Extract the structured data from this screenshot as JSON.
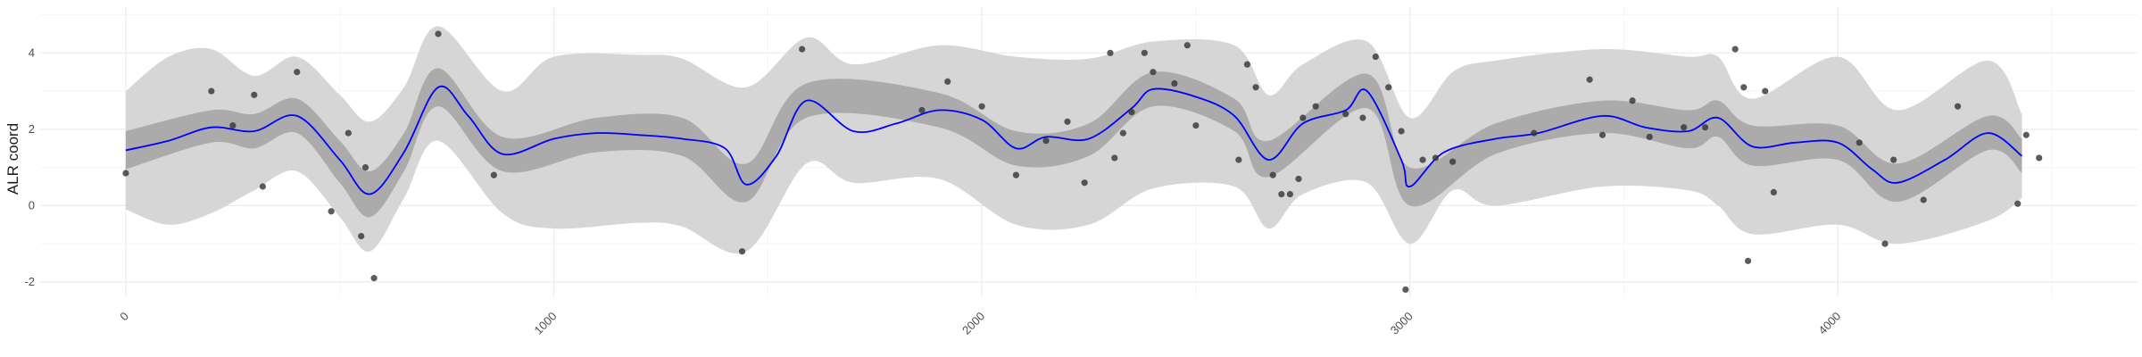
{
  "chart_data": {
    "type": "line",
    "title": "",
    "xlabel": "",
    "ylabel": "ALR coord",
    "xlim": [
      -200,
      4700
    ],
    "ylim": [
      -2.4,
      5.2
    ],
    "x_ticks": [
      0,
      1000,
      2000,
      3000,
      4000
    ],
    "y_ticks": [
      -2,
      0,
      2,
      4
    ],
    "grid": true,
    "legend": "none",
    "colors": {
      "mean_line": "#0000ff",
      "inner_band": "#ababab",
      "outer_band": "#d6d6d6",
      "points": "#333333",
      "grid_major": "#ebebeb",
      "grid_minor": "#f5f5f5"
    },
    "series": [
      {
        "values": [
          [
            0,
            1.45
          ],
          [
            100,
            1.7
          ],
          [
            200,
            2.05
          ],
          [
            300,
            1.95
          ],
          [
            400,
            2.35
          ],
          [
            500,
            1.2
          ],
          [
            570,
            0.3
          ],
          [
            650,
            1.4
          ],
          [
            730,
            3.1
          ],
          [
            800,
            2.35
          ],
          [
            880,
            1.35
          ],
          [
            1000,
            1.75
          ],
          [
            1100,
            1.9
          ],
          [
            1200,
            1.85
          ],
          [
            1300,
            1.75
          ],
          [
            1400,
            1.5
          ],
          [
            1450,
            0.55
          ],
          [
            1520,
            1.3
          ],
          [
            1590,
            2.75
          ],
          [
            1700,
            1.95
          ],
          [
            1800,
            2.15
          ],
          [
            1900,
            2.5
          ],
          [
            2000,
            2.25
          ],
          [
            2080,
            1.5
          ],
          [
            2150,
            1.8
          ],
          [
            2250,
            1.75
          ],
          [
            2350,
            2.55
          ],
          [
            2400,
            3.05
          ],
          [
            2500,
            2.85
          ],
          [
            2590,
            2.35
          ],
          [
            2670,
            1.2
          ],
          [
            2750,
            2.15
          ],
          [
            2850,
            2.5
          ],
          [
            2900,
            3.0
          ],
          [
            2980,
            1.2
          ],
          [
            3000,
            0.5
          ],
          [
            3080,
            1.4
          ],
          [
            3200,
            1.75
          ],
          [
            3300,
            1.9
          ],
          [
            3450,
            2.35
          ],
          [
            3550,
            2.05
          ],
          [
            3650,
            1.95
          ],
          [
            3720,
            2.3
          ],
          [
            3800,
            1.55
          ],
          [
            3900,
            1.65
          ],
          [
            4000,
            1.65
          ],
          [
            4080,
            0.95
          ],
          [
            4140,
            0.6
          ],
          [
            4250,
            1.2
          ],
          [
            4350,
            1.9
          ],
          [
            4430,
            1.3
          ]
        ],
        "inner_band": [
          [
            0,
            1.95,
            0.95
          ],
          [
            200,
            2.5,
            1.65
          ],
          [
            300,
            2.4,
            1.5
          ],
          [
            400,
            2.8,
            1.9
          ],
          [
            500,
            1.7,
            0.6
          ],
          [
            570,
            0.9,
            -0.3
          ],
          [
            650,
            1.9,
            0.9
          ],
          [
            730,
            3.6,
            2.6
          ],
          [
            880,
            1.8,
            0.9
          ],
          [
            1100,
            2.3,
            1.4
          ],
          [
            1300,
            2.3,
            1.3
          ],
          [
            1450,
            1.1,
            0.1
          ],
          [
            1590,
            3.2,
            2.3
          ],
          [
            1900,
            2.95,
            2.05
          ],
          [
            2080,
            1.95,
            1.05
          ],
          [
            2250,
            2.15,
            1.3
          ],
          [
            2400,
            3.5,
            2.6
          ],
          [
            2590,
            2.8,
            1.95
          ],
          [
            2670,
            1.7,
            0.75
          ],
          [
            2900,
            3.45,
            2.55
          ],
          [
            3000,
            1.0,
            0.0
          ],
          [
            3200,
            2.15,
            1.35
          ],
          [
            3450,
            2.75,
            1.9
          ],
          [
            3650,
            2.5,
            1.5
          ],
          [
            3720,
            2.75,
            1.8
          ],
          [
            3800,
            2.1,
            1.05
          ],
          [
            4000,
            2.1,
            1.2
          ],
          [
            4140,
            1.1,
            0.1
          ],
          [
            4350,
            2.35,
            1.45
          ],
          [
            4430,
            1.75,
            0.85
          ]
        ],
        "outer_band": [
          [
            0,
            3.0,
            -0.1
          ],
          [
            100,
            3.9,
            -0.5
          ],
          [
            200,
            4.1,
            -0.2
          ],
          [
            300,
            3.4,
            0.4
          ],
          [
            400,
            3.9,
            0.9
          ],
          [
            500,
            2.9,
            -0.3
          ],
          [
            570,
            2.2,
            -1.2
          ],
          [
            650,
            3.1,
            0.2
          ],
          [
            730,
            4.7,
            1.7
          ],
          [
            880,
            3.0,
            -0.2
          ],
          [
            1000,
            3.9,
            -0.6
          ],
          [
            1200,
            3.95,
            -0.45
          ],
          [
            1300,
            3.85,
            -0.55
          ],
          [
            1450,
            3.1,
            -1.2
          ],
          [
            1590,
            4.4,
            1.1
          ],
          [
            1700,
            3.7,
            0.6
          ],
          [
            1900,
            4.2,
            0.7
          ],
          [
            2080,
            3.9,
            -0.5
          ],
          [
            2250,
            3.85,
            -0.5
          ],
          [
            2400,
            4.3,
            0.45
          ],
          [
            2590,
            4.2,
            0.5
          ],
          [
            2670,
            2.9,
            -0.6
          ],
          [
            2750,
            3.7,
            0.3
          ],
          [
            2900,
            4.3,
            0.6
          ],
          [
            3000,
            2.3,
            -1.0
          ],
          [
            3100,
            3.5,
            0.4
          ],
          [
            3200,
            3.8,
            0.0
          ],
          [
            3450,
            4.1,
            0.5
          ],
          [
            3650,
            3.9,
            0.4
          ],
          [
            3720,
            3.9,
            0.0
          ],
          [
            3800,
            2.8,
            -0.75
          ],
          [
            4000,
            3.9,
            -0.5
          ],
          [
            4140,
            2.5,
            -1.0
          ],
          [
            4350,
            3.8,
            -0.4
          ],
          [
            4430,
            2.4,
            0.2
          ]
        ]
      }
    ],
    "points": [
      [
        0,
        0.85
      ],
      [
        200,
        3.0
      ],
      [
        250,
        2.1
      ],
      [
        300,
        2.9
      ],
      [
        320,
        0.5
      ],
      [
        400,
        3.5
      ],
      [
        480,
        -0.15
      ],
      [
        520,
        1.9
      ],
      [
        550,
        -0.8
      ],
      [
        560,
        1.0
      ],
      [
        580,
        -1.9
      ],
      [
        730,
        4.5
      ],
      [
        860,
        0.8
      ],
      [
        1440,
        -1.2
      ],
      [
        1580,
        4.1
      ],
      [
        1860,
        2.5
      ],
      [
        1920,
        3.25
      ],
      [
        2000,
        2.6
      ],
      [
        2080,
        0.8
      ],
      [
        2150,
        1.7
      ],
      [
        2200,
        2.2
      ],
      [
        2240,
        0.6
      ],
      [
        2300,
        4.0
      ],
      [
        2310,
        1.25
      ],
      [
        2330,
        1.9
      ],
      [
        2350,
        2.45
      ],
      [
        2380,
        4.0
      ],
      [
        2400,
        3.5
      ],
      [
        2450,
        3.2
      ],
      [
        2480,
        4.2
      ],
      [
        2500,
        2.1
      ],
      [
        2600,
        1.2
      ],
      [
        2620,
        3.7
      ],
      [
        2640,
        3.1
      ],
      [
        2680,
        0.8
      ],
      [
        2700,
        0.3
      ],
      [
        2720,
        0.3
      ],
      [
        2740,
        0.7
      ],
      [
        2750,
        2.3
      ],
      [
        2780,
        2.6
      ],
      [
        2850,
        2.4
      ],
      [
        2890,
        2.3
      ],
      [
        2920,
        3.9
      ],
      [
        2950,
        3.1
      ],
      [
        2980,
        1.95
      ],
      [
        2990,
        -2.2
      ],
      [
        3030,
        1.2
      ],
      [
        3060,
        1.25
      ],
      [
        3100,
        1.15
      ],
      [
        3290,
        1.9
      ],
      [
        3420,
        3.3
      ],
      [
        3450,
        1.85
      ],
      [
        3520,
        2.75
      ],
      [
        3560,
        1.8
      ],
      [
        3640,
        2.05
      ],
      [
        3690,
        2.05
      ],
      [
        3760,
        4.1
      ],
      [
        3780,
        3.1
      ],
      [
        3790,
        -1.45
      ],
      [
        3830,
        3.0
      ],
      [
        3850,
        0.35
      ],
      [
        4050,
        1.65
      ],
      [
        4110,
        -1.0
      ],
      [
        4130,
        1.2
      ],
      [
        4200,
        0.15
      ],
      [
        4280,
        2.6
      ],
      [
        4420,
        0.05
      ],
      [
        4440,
        1.85
      ],
      [
        4470,
        1.25
      ]
    ]
  }
}
